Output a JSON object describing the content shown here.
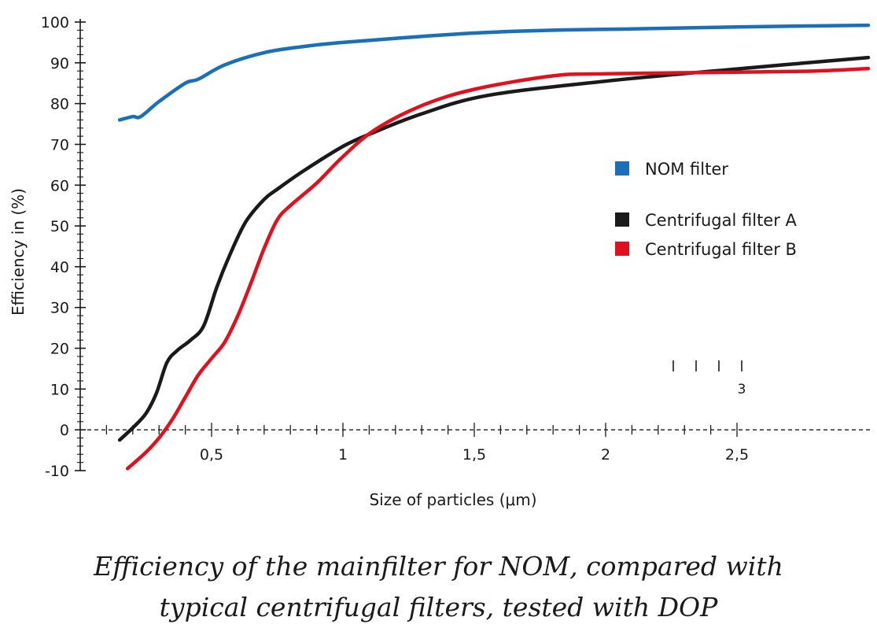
{
  "chart_data": {
    "type": "line",
    "title": "Efficiency of the mainfilter for NOM, compared with typical centrifugal filters, tested with DOP",
    "caption_lines": [
      "Efficiency of the mainfilter for NOM, compared with",
      "typical centrifugal filters, tested with DOP"
    ],
    "xlabel": "Size of particles (μm)",
    "ylabel": "Efficiency in (%)",
    "xlim": [
      0.0,
      3.0
    ],
    "ylim": [
      -10,
      100
    ],
    "x_tick_values": [
      0.5,
      1,
      1.5,
      2,
      2.5
    ],
    "x_tick_labels": [
      "0,5",
      "1",
      "1,5",
      "2",
      "2,5"
    ],
    "y_tick_values": [
      100,
      90,
      80,
      70,
      60,
      50,
      40,
      30,
      20,
      10,
      0,
      -10
    ],
    "y_tick_labels": [
      "100",
      "90",
      "80",
      "70",
      "60",
      "50",
      "40",
      "30",
      "20",
      "10",
      "0",
      "-10"
    ],
    "zero_line": "dashed",
    "grid": false,
    "legend_position": "right",
    "mini_scale_label": "3",
    "series": [
      {
        "name": "NOM filter",
        "color": "#1a6fb8",
        "x": [
          0.15,
          0.2,
          0.23,
          0.3,
          0.4,
          0.45,
          0.55,
          0.7,
          0.85,
          1.0,
          1.2,
          1.5,
          1.8,
          2.1,
          2.5,
          3.0
        ],
        "y": [
          76,
          76.8,
          76.8,
          80.5,
          85,
          86,
          89.5,
          92.5,
          94,
          95,
          96,
          97.3,
          98,
          98.3,
          98.8,
          99.2
        ]
      },
      {
        "name": "Centrifugal filter A",
        "color": "#1a1a1a",
        "x": [
          0.15,
          0.2,
          0.25,
          0.29,
          0.33,
          0.37,
          0.42,
          0.47,
          0.52,
          0.57,
          0.63,
          0.7,
          0.75,
          0.85,
          1.0,
          1.12,
          1.3,
          1.55,
          2.0,
          2.5,
          3.0
        ],
        "y": [
          -2.5,
          0.5,
          4,
          9,
          16.5,
          19.5,
          22,
          25.5,
          35,
          43,
          51,
          56.5,
          59,
          63.5,
          69.5,
          73,
          77.5,
          82,
          85.5,
          88.5,
          91.3
        ]
      },
      {
        "name": "Centrifugal filter B",
        "color": "#e0101d",
        "x": [
          0.18,
          0.25,
          0.3,
          0.35,
          0.4,
          0.45,
          0.5,
          0.55,
          0.6,
          0.65,
          0.7,
          0.75,
          0.8,
          0.9,
          1.0,
          1.12,
          1.3,
          1.5,
          1.8,
          2.0,
          2.5,
          2.8,
          3.0
        ],
        "y": [
          -9.5,
          -5.5,
          -2,
          2.5,
          8,
          13.5,
          17.5,
          21.5,
          28,
          36,
          44.5,
          51.5,
          55,
          60.5,
          67,
          73.5,
          79.5,
          83.5,
          86.8,
          87.3,
          87.7,
          88,
          88.6
        ]
      }
    ]
  }
}
